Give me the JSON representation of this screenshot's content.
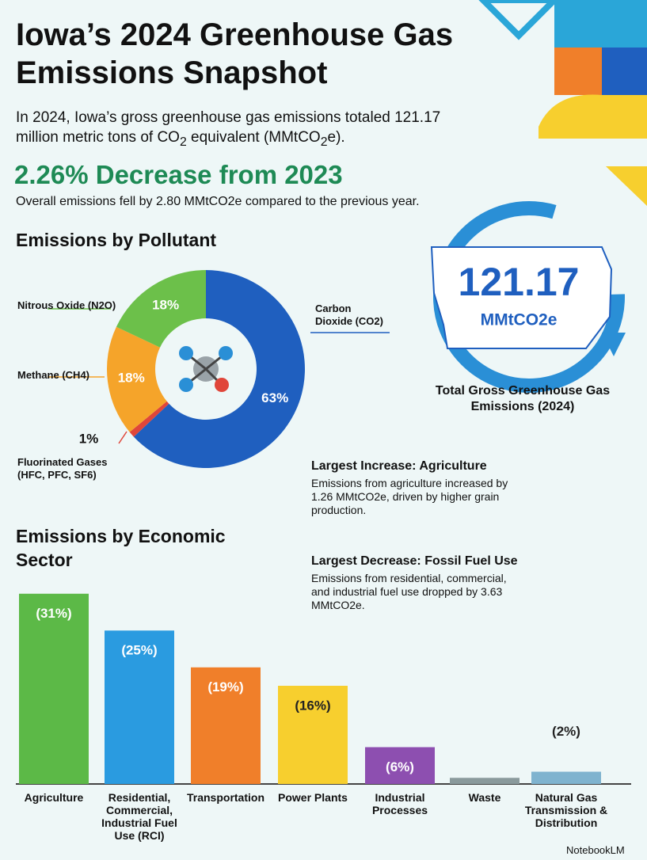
{
  "header": {
    "title": "Iowa’s 2024 Greenhouse Gas Emissions Snapshot",
    "intro": [
      "In 2024, Iowa’s gross greenhouse gas emissions totaled 121.17 million metric tons of CO",
      "2",
      " equivalent (MMtCO",
      "2",
      "e)."
    ],
    "headline": "2.26% Decrease from 2023",
    "subline": "Overall emissions fell by 2.80 MMtCO2e compared to the previous year."
  },
  "total": {
    "value": "121.17",
    "unit": "MMtCO2e",
    "caption": "Total Gross Greenhouse Gas Emissions (2024)"
  },
  "callouts": [
    {
      "title": "Largest Increase: Agriculture",
      "text": "Emissions from agriculture increased by 1.26 MMtCO2e, driven by higher grain production."
    },
    {
      "title": "Largest Decrease: Fossil Fuel Use",
      "text": "Emissions from residential, commercial, and industrial fuel use dropped by 3.63 MMtCO2e."
    }
  ],
  "chart_data": [
    {
      "type": "pie",
      "donut": true,
      "title": "Emissions by Pollutant",
      "categories": [
        "Carbon Dioxide (CO2)",
        "Fluorinated Gases (HFC, PFC, SF6)",
        "Methane (CH4)",
        "Nitrous Oxide (N2O)"
      ],
      "values": [
        63,
        1,
        18,
        18
      ],
      "value_labels": [
        "63%",
        "1%",
        "18%",
        "18%"
      ],
      "colors": [
        "#1f5fbf",
        "#e0463a",
        "#f5a42a",
        "#6cc04a"
      ]
    },
    {
      "type": "bar",
      "title": "Emissions by Economic Sector",
      "categories": [
        "Agriculture",
        "Residential, Commercial, Industrial Fuel Use (RCI)",
        "Transportation",
        "Power Plants",
        "Industrial Processes",
        "Waste",
        "Natural Gas Transmission & Distribution"
      ],
      "values": [
        31,
        25,
        19,
        16,
        6,
        1,
        2
      ],
      "value_labels": [
        "(31%)",
        "(25%)",
        "(19%)",
        "(16%)",
        "(6%)",
        null,
        "(2%)"
      ],
      "colors": [
        "#5cb947",
        "#2a9be0",
        "#f07f2a",
        "#f7cf2e",
        "#8d4fb0",
        "#8a9a9c",
        "#7fb3cf"
      ]
    }
  ],
  "footer": "NotebookLM"
}
